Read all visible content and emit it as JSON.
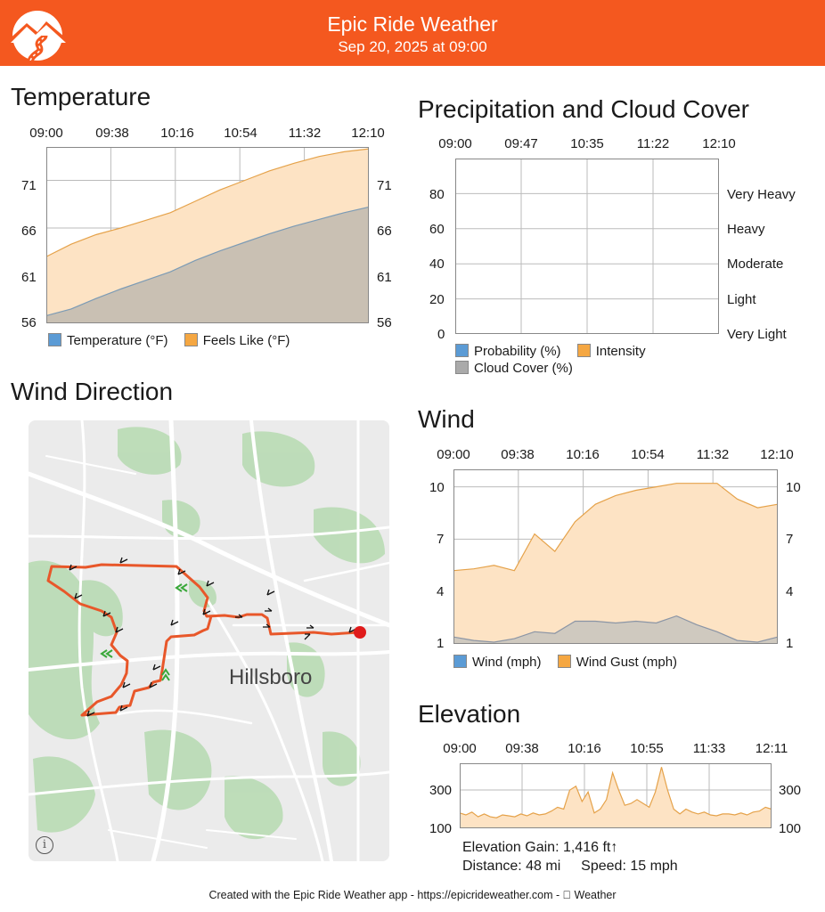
{
  "header": {
    "title": "Epic Ride Weather",
    "subtitle": "Sep 20, 2025 at 09:00",
    "colors": {
      "brand": "#f4581f"
    }
  },
  "temperature": {
    "title": "Temperature",
    "legend": [
      "Temperature (°F)",
      "Feels Like (°F)"
    ],
    "chart_data": {
      "type": "area",
      "x_tick_labels": [
        "09:00",
        "09:38",
        "10:16",
        "10:54",
        "11:32",
        "12:10"
      ],
      "y_ticks": [
        56,
        61,
        66,
        71
      ],
      "ylim": [
        56,
        74.5
      ],
      "series": [
        {
          "name": "Temperature (°F)",
          "color": "#c9c0b3",
          "values": [
            56.8,
            57.5,
            58.6,
            59.6,
            60.5,
            61.4,
            62.6,
            63.6,
            64.5,
            65.4,
            66.2,
            66.9,
            67.6,
            68.2
          ]
        },
        {
          "name": "Feels Like (°F)",
          "color": "#fde3c4",
          "values": [
            63.0,
            64.3,
            65.3,
            66.0,
            66.8,
            67.6,
            68.8,
            70.0,
            71.0,
            72.0,
            72.8,
            73.5,
            74.0,
            74.3
          ]
        }
      ]
    }
  },
  "precip": {
    "title": "Precipitation and Cloud Cover",
    "legend": [
      "Probability (%)",
      "Intensity",
      "Cloud Cover (%)"
    ],
    "chart_data": {
      "type": "area",
      "x_tick_labels": [
        "09:00",
        "09:47",
        "10:35",
        "11:22",
        "12:10"
      ],
      "y_ticks": [
        0,
        20,
        40,
        60,
        80
      ],
      "y_right_labels": [
        "Very Light",
        "Light",
        "Moderate",
        "Heavy",
        "Very Heavy"
      ],
      "ylim": [
        0,
        100
      ],
      "series": [
        {
          "name": "Probability (%)",
          "values": []
        },
        {
          "name": "Intensity",
          "values": []
        },
        {
          "name": "Cloud Cover (%)",
          "values": []
        }
      ]
    }
  },
  "wind": {
    "title": "Wind",
    "legend": [
      "Wind (mph)",
      "Wind Gust (mph)"
    ],
    "chart_data": {
      "type": "area",
      "x_tick_labels": [
        "09:00",
        "09:38",
        "10:16",
        "10:54",
        "11:32",
        "12:10"
      ],
      "y_ticks": [
        1,
        4,
        7,
        10
      ],
      "ylim": [
        1,
        11
      ],
      "series": [
        {
          "name": "Wind (mph)",
          "color": "#cfc9bf",
          "values": [
            1.4,
            1.2,
            1.1,
            1.3,
            1.7,
            1.6,
            2.3,
            2.3,
            2.2,
            2.3,
            2.2,
            2.6,
            2.1,
            1.7,
            1.2,
            1.1,
            1.4
          ]
        },
        {
          "name": "Wind Gust (mph)",
          "color": "#fde3c4",
          "values": [
            5.2,
            5.3,
            5.5,
            5.2,
            7.3,
            6.3,
            8.0,
            9.0,
            9.5,
            9.8,
            10.0,
            10.2,
            10.2,
            10.2,
            9.3,
            8.8,
            9.0
          ]
        }
      ]
    }
  },
  "elevation": {
    "title": "Elevation",
    "chart_data": {
      "type": "area",
      "x_tick_labels": [
        "09:00",
        "09:38",
        "10:16",
        "10:55",
        "11:33",
        "12:11"
      ],
      "y_ticks": [
        100,
        300
      ],
      "ylim": [
        100,
        440
      ],
      "series": [
        {
          "name": "Elevation",
          "color": "#fde3c4",
          "values": [
            180,
            170,
            185,
            160,
            175,
            160,
            155,
            170,
            165,
            160,
            175,
            165,
            180,
            170,
            175,
            190,
            210,
            200,
            300,
            320,
            240,
            290,
            180,
            200,
            250,
            390,
            300,
            220,
            230,
            250,
            230,
            210,
            290,
            420,
            300,
            200,
            175,
            200,
            185,
            175,
            185,
            170,
            165,
            175,
            175,
            170,
            180,
            170,
            185,
            190,
            210,
            200
          ]
        }
      ]
    },
    "stats": {
      "gain": "Elevation Gain: 1,416 ft↑",
      "distance": "Distance: 48 mi",
      "speed": "Speed: 15 mph"
    }
  },
  "wind_direction": {
    "title": "Wind Direction",
    "city_label": "Hillsboro",
    "info_glyph": "i",
    "map_icons": [
      "wind-arrow-icon",
      "tailwind-chevron-icon",
      "finish-marker-icon",
      "info-icon"
    ]
  },
  "footer": {
    "text": "Created with the Epic Ride Weather app - https://epicrideweather.com -  Weather"
  }
}
